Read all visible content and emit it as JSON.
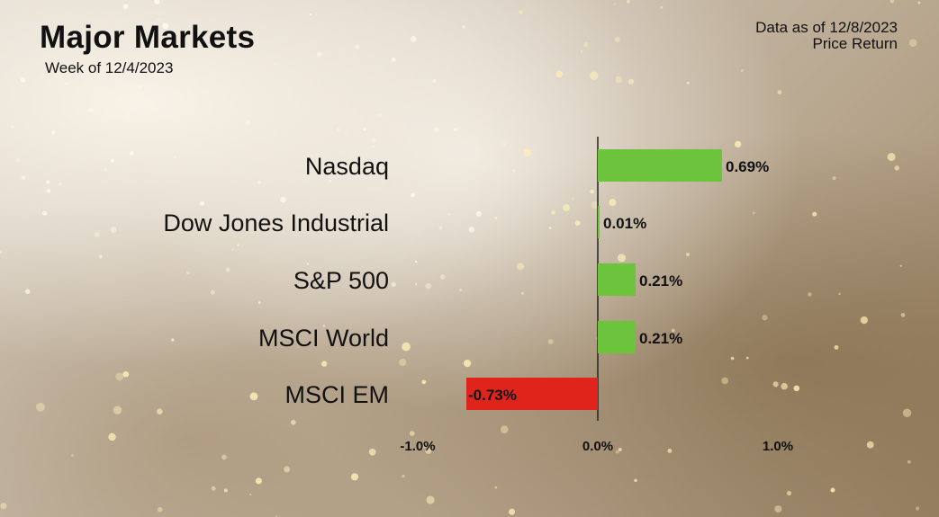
{
  "header": {
    "title": "Major Markets",
    "week": "Week of 12/4/2023",
    "data_as_of": "Data as of 12/8/2023",
    "return_type": "Price Return"
  },
  "colors": {
    "positive": "#6cc33c",
    "negative": "#e0241c",
    "text": "#111111"
  },
  "chart_data": {
    "type": "bar",
    "orientation": "horizontal",
    "categories": [
      "Nasdaq",
      "Dow Jones Industrial",
      "S&P 500",
      "MSCI World",
      "MSCI EM"
    ],
    "values": [
      0.69,
      0.01,
      0.21,
      0.21,
      -0.73
    ],
    "labels": [
      "0.69%",
      "0.01%",
      "0.21%",
      "0.21%",
      "-0.73%"
    ],
    "xlim": [
      -1.0,
      1.0
    ],
    "ticks": [
      -1.0,
      0.0,
      1.0
    ],
    "tick_labels": [
      "-1.0%",
      "0.0%",
      "1.0%"
    ],
    "grid": false,
    "legend": "none"
  }
}
